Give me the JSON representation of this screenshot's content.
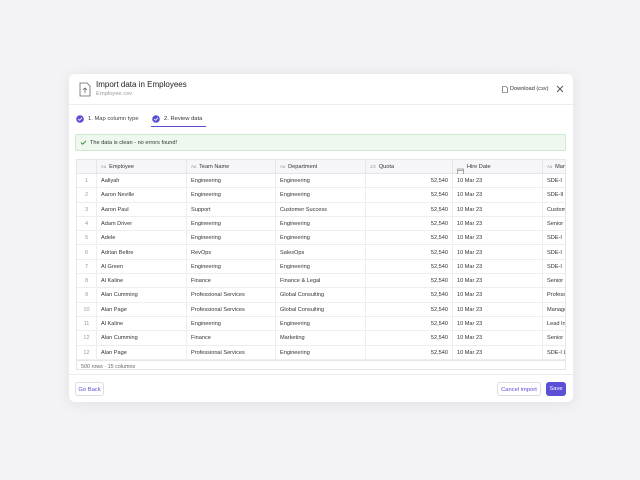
{
  "header": {
    "title": "Import data in Employees",
    "subtitle": "Employee.csv",
    "download": "Download (csv)"
  },
  "steps": [
    "1. Map column type",
    "2. Review data"
  ],
  "banner": "The data is clean - no errors found!",
  "table": {
    "columns": [
      {
        "icon": "Aa",
        "name": "Employee"
      },
      {
        "icon": "Aa",
        "name": "Team Name"
      },
      {
        "icon": "Aa",
        "name": "Department"
      },
      {
        "icon": "1/2",
        "name": "Quota"
      },
      {
        "name": "Hire Date"
      },
      {
        "icon": "Aa",
        "name": "Manager"
      }
    ],
    "rows": [
      [
        "1",
        "Aaliyah",
        "Engineering",
        "Engineering",
        "52,540",
        "10 Mar 23",
        "SDE-I"
      ],
      [
        "2",
        "Aaron Neville",
        "Engineering",
        "Engineering",
        "52,540",
        "10 Mar 23",
        "SDE-II"
      ],
      [
        "3",
        "Aaron Paul",
        "Support",
        "Customer Success",
        "52,540",
        "10 Mar 23",
        "Customer Success"
      ],
      [
        "4",
        "Adam Driver",
        "Engineering",
        "Engineering",
        "52,540",
        "10 Mar 23",
        "Senior Engineer"
      ],
      [
        "5",
        "Adele",
        "Engineering",
        "Engineering",
        "52,540",
        "10 Mar 23",
        "SDE-I"
      ],
      [
        "6",
        "Adrian Beltre",
        "RevOps",
        "SalesOps",
        "52,540",
        "10 Mar 23",
        "SDE-I"
      ],
      [
        "7",
        "Al Green",
        "Engineering",
        "Engineering",
        "52,540",
        "10 Mar 23",
        "SDE-I"
      ],
      [
        "8",
        "Al Kaline",
        "Finance",
        "Finance & Legal",
        "52,540",
        "10 Mar 23",
        "Senior"
      ],
      [
        "9",
        "Alan Cumming",
        "Professional Services",
        "Global Consulting",
        "52,540",
        "10 Mar 23",
        "Professional"
      ],
      [
        "10",
        "Alan Page",
        "Professional Services",
        "Global Consulting",
        "52,540",
        "10 Mar 23",
        "Manager"
      ],
      [
        "11",
        "Al Kaline",
        "Engineering",
        "Engineering",
        "52,540",
        "10 Mar 23",
        "Lead Instructor"
      ],
      [
        "12",
        "Alan Cumming",
        "Finance",
        "Marketing",
        "52,540",
        "10 Mar 23",
        "Senior"
      ],
      [
        "12",
        "Alan Page",
        "Professional Services",
        "Engineering",
        "52,540",
        "10 Mar 23",
        "SDE-I Lead"
      ]
    ],
    "footer": "500 rows · 15 columns"
  },
  "buttons": {
    "back": "Go Back",
    "cancel": "Cancel import",
    "save": "Save"
  }
}
